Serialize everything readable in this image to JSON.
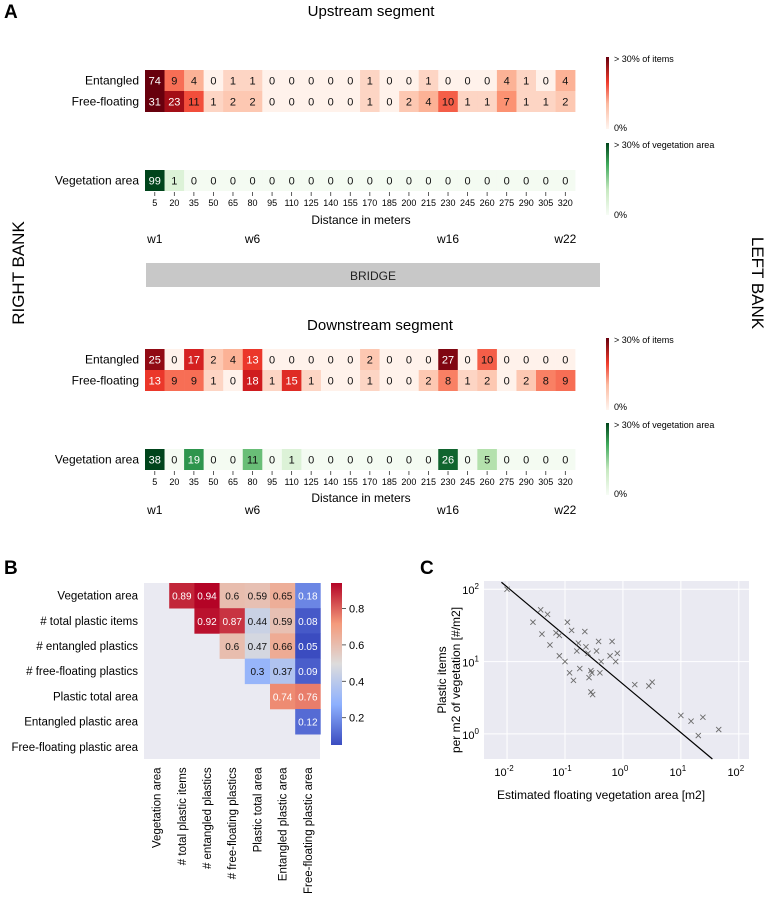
{
  "panels": {
    "a": "A",
    "b": "B",
    "c": "C"
  },
  "side_labels": {
    "left": "RIGHT BANK",
    "right": "LEFT BANK"
  },
  "bridge_label": "BRIDGE",
  "x_label": "Distance in meters",
  "distances": [
    "5",
    "20",
    "35",
    "50",
    "65",
    "80",
    "95",
    "110",
    "125",
    "140",
    "155",
    "170",
    "185",
    "200",
    "215",
    "230",
    "245",
    "260",
    "275",
    "290",
    "305",
    "320"
  ],
  "waypoints": [
    {
      "label": "w1",
      "index": 0
    },
    {
      "label": "w6",
      "index": 5
    },
    {
      "label": "w16",
      "index": 15
    },
    {
      "label": "w22",
      "index": 21
    }
  ],
  "legend_items": {
    "max": "> 30% of items",
    "min": "0%"
  },
  "legend_veg": {
    "max": "> 30% of vegetation area",
    "min": "0%"
  },
  "colors": {
    "red_high": "#67000d",
    "green_high": "#00441b",
    "bridge": "#c8c8c8",
    "plot_bg": "#eaeaf2"
  },
  "chart_data": [
    {
      "type": "heatmap",
      "title": "Upstream segment",
      "xlabel": "Distance in meters",
      "rows": [
        {
          "name": "Entangled",
          "cmap": "reds",
          "values": [
            74,
            9,
            4,
            0,
            1,
            1,
            0,
            0,
            0,
            0,
            0,
            1,
            0,
            0,
            1,
            0,
            0,
            0,
            4,
            1,
            0,
            4
          ]
        },
        {
          "name": "Free-floating",
          "cmap": "reds",
          "values": [
            31,
            23,
            11,
            1,
            2,
            2,
            0,
            0,
            0,
            0,
            0,
            1,
            0,
            2,
            4,
            10,
            1,
            1,
            7,
            1,
            1,
            2
          ]
        },
        {
          "name": "Vegetation area",
          "cmap": "greens",
          "values": [
            99,
            1,
            0,
            0,
            0,
            0,
            0,
            0,
            0,
            0,
            0,
            0,
            0,
            0,
            0,
            0,
            0,
            0,
            0,
            0,
            0,
            0
          ]
        }
      ]
    },
    {
      "type": "heatmap",
      "title": "Downstream segment",
      "xlabel": "Distance in meters",
      "rows": [
        {
          "name": "Entangled",
          "cmap": "reds",
          "values": [
            25,
            0,
            17,
            2,
            4,
            13,
            0,
            0,
            0,
            0,
            0,
            2,
            0,
            0,
            0,
            27,
            0,
            10,
            0,
            0,
            0,
            0
          ]
        },
        {
          "name": "Free-floating",
          "cmap": "reds",
          "values": [
            13,
            9,
            9,
            1,
            0,
            18,
            1,
            15,
            1,
            0,
            0,
            1,
            0,
            0,
            2,
            8,
            1,
            2,
            0,
            2,
            8,
            9
          ]
        },
        {
          "name": "Vegetation area",
          "cmap": "greens",
          "values": [
            38,
            0,
            19,
            0,
            0,
            11,
            0,
            1,
            0,
            0,
            0,
            0,
            0,
            0,
            0,
            26,
            0,
            5,
            0,
            0,
            0,
            0
          ]
        }
      ]
    },
    {
      "type": "heatmap",
      "subtype": "correlation",
      "labels": [
        "Vegetation area",
        "# total plastic items",
        "# entangled plastics",
        "# free-floating plastics",
        "Plastic total area",
        "Entangled plastic area",
        "Free-floating plastic area"
      ],
      "matrix": [
        [
          null,
          0.89,
          0.94,
          0.6,
          0.59,
          0.65,
          0.18
        ],
        [
          null,
          null,
          0.92,
          0.87,
          0.44,
          0.59,
          0.08
        ],
        [
          null,
          null,
          null,
          0.6,
          0.47,
          0.66,
          0.05
        ],
        [
          null,
          null,
          null,
          null,
          0.3,
          0.37,
          0.09
        ],
        [
          null,
          null,
          null,
          null,
          null,
          0.74,
          0.76
        ],
        [
          null,
          null,
          null,
          null,
          null,
          null,
          0.12
        ],
        [
          null,
          null,
          null,
          null,
          null,
          null,
          null
        ]
      ],
      "colorbar_range": [
        0.05,
        0.94
      ],
      "colorbar_ticks": [
        "0.2",
        "0.4",
        "0.6",
        "0.8"
      ]
    },
    {
      "type": "scatter",
      "xlabel": "Estimated floating vegetation area [m2]",
      "ylabel_line1": "Plastic items",
      "ylabel_line2": "per m2 of vegetation [#/m2]",
      "x_scale": "log",
      "y_scale": "log",
      "xlim": [
        0.004,
        150
      ],
      "ylim": [
        0.45,
        130
      ],
      "x_ticks": [
        {
          "value": 0.01,
          "base": "10",
          "exp": "-2"
        },
        {
          "value": 0.1,
          "base": "10",
          "exp": "-1"
        },
        {
          "value": 1,
          "base": "10",
          "exp": "0"
        },
        {
          "value": 10,
          "base": "10",
          "exp": "1"
        },
        {
          "value": 100,
          "base": "10",
          "exp": "2"
        }
      ],
      "y_ticks": [
        {
          "value": 1,
          "base": "10",
          "exp": "0"
        },
        {
          "value": 10,
          "base": "10",
          "exp": "1"
        },
        {
          "value": 100,
          "base": "10",
          "exp": "2"
        }
      ],
      "fit_line": [
        [
          0.008,
          125
        ],
        [
          35,
          0.45
        ]
      ],
      "points": [
        [
          0.01,
          100
        ],
        [
          0.028,
          35
        ],
        [
          0.038,
          52
        ],
        [
          0.04,
          24
        ],
        [
          0.05,
          45
        ],
        [
          0.055,
          17
        ],
        [
          0.07,
          25
        ],
        [
          0.08,
          23
        ],
        [
          0.08,
          12
        ],
        [
          0.1,
          10
        ],
        [
          0.11,
          35
        ],
        [
          0.13,
          27
        ],
        [
          0.12,
          7
        ],
        [
          0.14,
          5.5
        ],
        [
          0.16,
          14
        ],
        [
          0.17,
          18
        ],
        [
          0.18,
          8
        ],
        [
          0.22,
          26
        ],
        [
          0.23,
          16
        ],
        [
          0.25,
          13
        ],
        [
          0.26,
          6
        ],
        [
          0.28,
          3.8
        ],
        [
          0.28,
          7.5
        ],
        [
          0.29,
          7
        ],
        [
          0.3,
          3.5
        ],
        [
          0.35,
          14
        ],
        [
          0.38,
          19
        ],
        [
          0.4,
          7
        ],
        [
          0.42,
          10
        ],
        [
          0.6,
          12
        ],
        [
          0.65,
          19
        ],
        [
          0.75,
          10
        ],
        [
          0.8,
          13
        ],
        [
          1.6,
          4.8
        ],
        [
          2.8,
          4.6
        ],
        [
          3.2,
          5.2
        ],
        [
          10,
          1.8
        ],
        [
          15,
          1.5
        ],
        [
          20,
          0.95
        ],
        [
          24,
          1.7
        ],
        [
          45,
          1.15
        ]
      ]
    }
  ]
}
